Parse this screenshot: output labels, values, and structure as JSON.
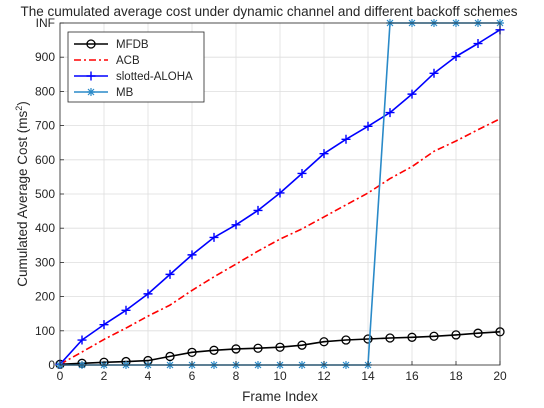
{
  "chart_data": {
    "type": "line",
    "title": "The cumulated average cost under dynamic channel and different backoff schemes",
    "xlabel": "Frame Index",
    "ylabel_main": "Cumulated Average Cost (ms",
    "ylabel_sup": "2",
    "ylabel_close": ")",
    "xlim": [
      0,
      20
    ],
    "ylim": [
      0,
      1000
    ],
    "xticks": [
      0,
      2,
      4,
      6,
      8,
      10,
      12,
      14,
      16,
      18,
      20
    ],
    "xtick_labels": [
      "0",
      "2",
      "4",
      "6",
      "8",
      "10",
      "12",
      "14",
      "16",
      "18",
      "20"
    ],
    "yticks": [
      0,
      100,
      200,
      300,
      400,
      500,
      600,
      700,
      800,
      900,
      1000
    ],
    "ytick_labels": [
      "0",
      "100",
      "200",
      "300",
      "400",
      "500",
      "600",
      "700",
      "800",
      "900",
      "INF"
    ],
    "grid": true,
    "legend_position": "top-left",
    "x": [
      0,
      1,
      2,
      3,
      4,
      5,
      6,
      7,
      8,
      9,
      10,
      11,
      12,
      13,
      14,
      15,
      16,
      17,
      18,
      19,
      20
    ],
    "series": [
      {
        "name": "MFDB",
        "color": "#000000",
        "dash": "solid",
        "marker": "circle",
        "values": [
          2,
          5,
          8,
          10,
          13,
          25,
          37,
          43,
          47,
          49,
          52,
          58,
          68,
          73,
          76,
          79,
          81,
          84,
          88,
          93,
          97
        ]
      },
      {
        "name": "ACB",
        "color": "#ff0000",
        "dash": "dashdot",
        "marker": "none",
        "values": [
          2,
          38,
          75,
          108,
          143,
          175,
          218,
          258,
          295,
          333,
          368,
          398,
          433,
          468,
          503,
          545,
          580,
          625,
          655,
          688,
          720
        ]
      },
      {
        "name": "slotted-ALOHA",
        "color": "#0000ff",
        "dash": "solid",
        "marker": "plus",
        "values": [
          2,
          73,
          118,
          160,
          208,
          265,
          322,
          373,
          410,
          452,
          503,
          560,
          618,
          660,
          698,
          738,
          792,
          853,
          902,
          940,
          980
        ]
      },
      {
        "name": "MB",
        "color": "#2a8ac8",
        "dash": "solid",
        "marker": "asterisk",
        "values": [
          0,
          0,
          0,
          0,
          0,
          0,
          0,
          0,
          0,
          0,
          0,
          0,
          0,
          0,
          0,
          1000,
          1000,
          1000,
          1000,
          1000,
          1000
        ]
      }
    ]
  }
}
